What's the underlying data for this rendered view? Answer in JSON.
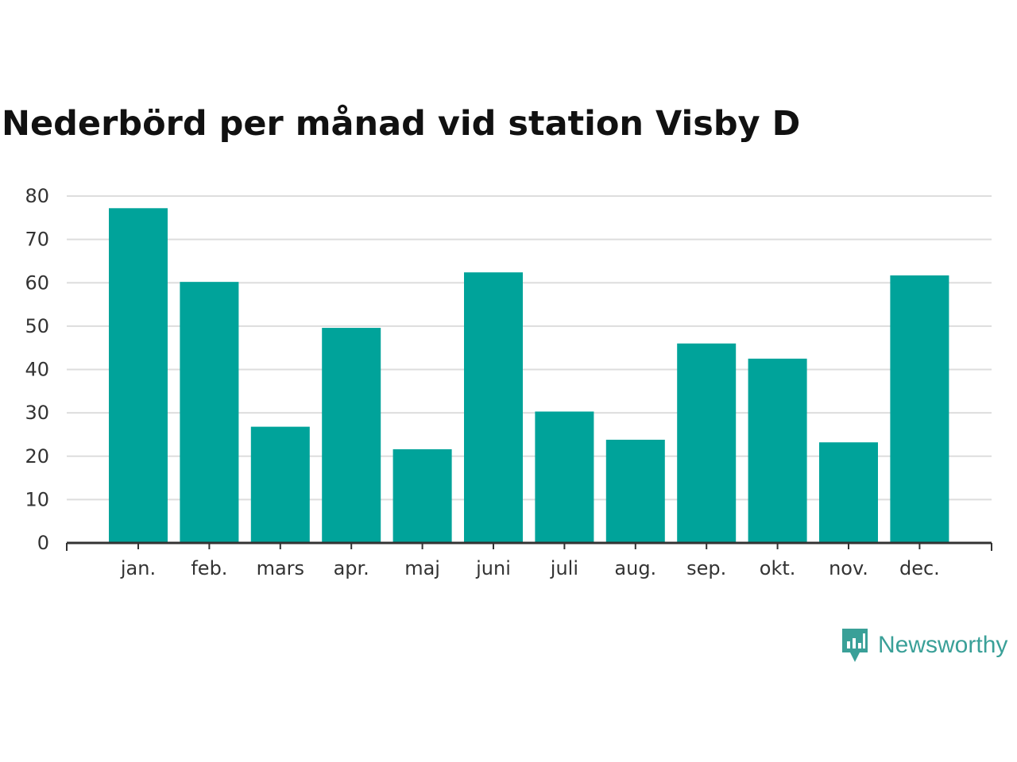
{
  "title": "Nederbörd per månad vid station Visby D",
  "brand": {
    "name": "Newsworthy",
    "icon": "newsworthy-logo-icon",
    "color": "#3aa098"
  },
  "colors": {
    "bar": "#00a39a",
    "grid": "#dddddd",
    "axis": "#333333",
    "title": "#111111"
  },
  "chart_data": {
    "type": "bar",
    "title": "Nederbörd per månad vid station Visby D",
    "categories": [
      "jan.",
      "feb.",
      "mars",
      "apr.",
      "maj",
      "juni",
      "juli",
      "aug.",
      "sep.",
      "okt.",
      "nov.",
      "dec."
    ],
    "values": [
      77.2,
      60.2,
      26.8,
      49.6,
      21.6,
      62.4,
      30.3,
      23.8,
      46.0,
      42.5,
      23.2,
      61.7
    ],
    "xlabel": "",
    "ylabel": "",
    "ylim": [
      0,
      80
    ],
    "yticks": [
      0,
      10,
      20,
      30,
      40,
      50,
      60,
      70,
      80
    ],
    "grid": true,
    "legend": "none"
  }
}
